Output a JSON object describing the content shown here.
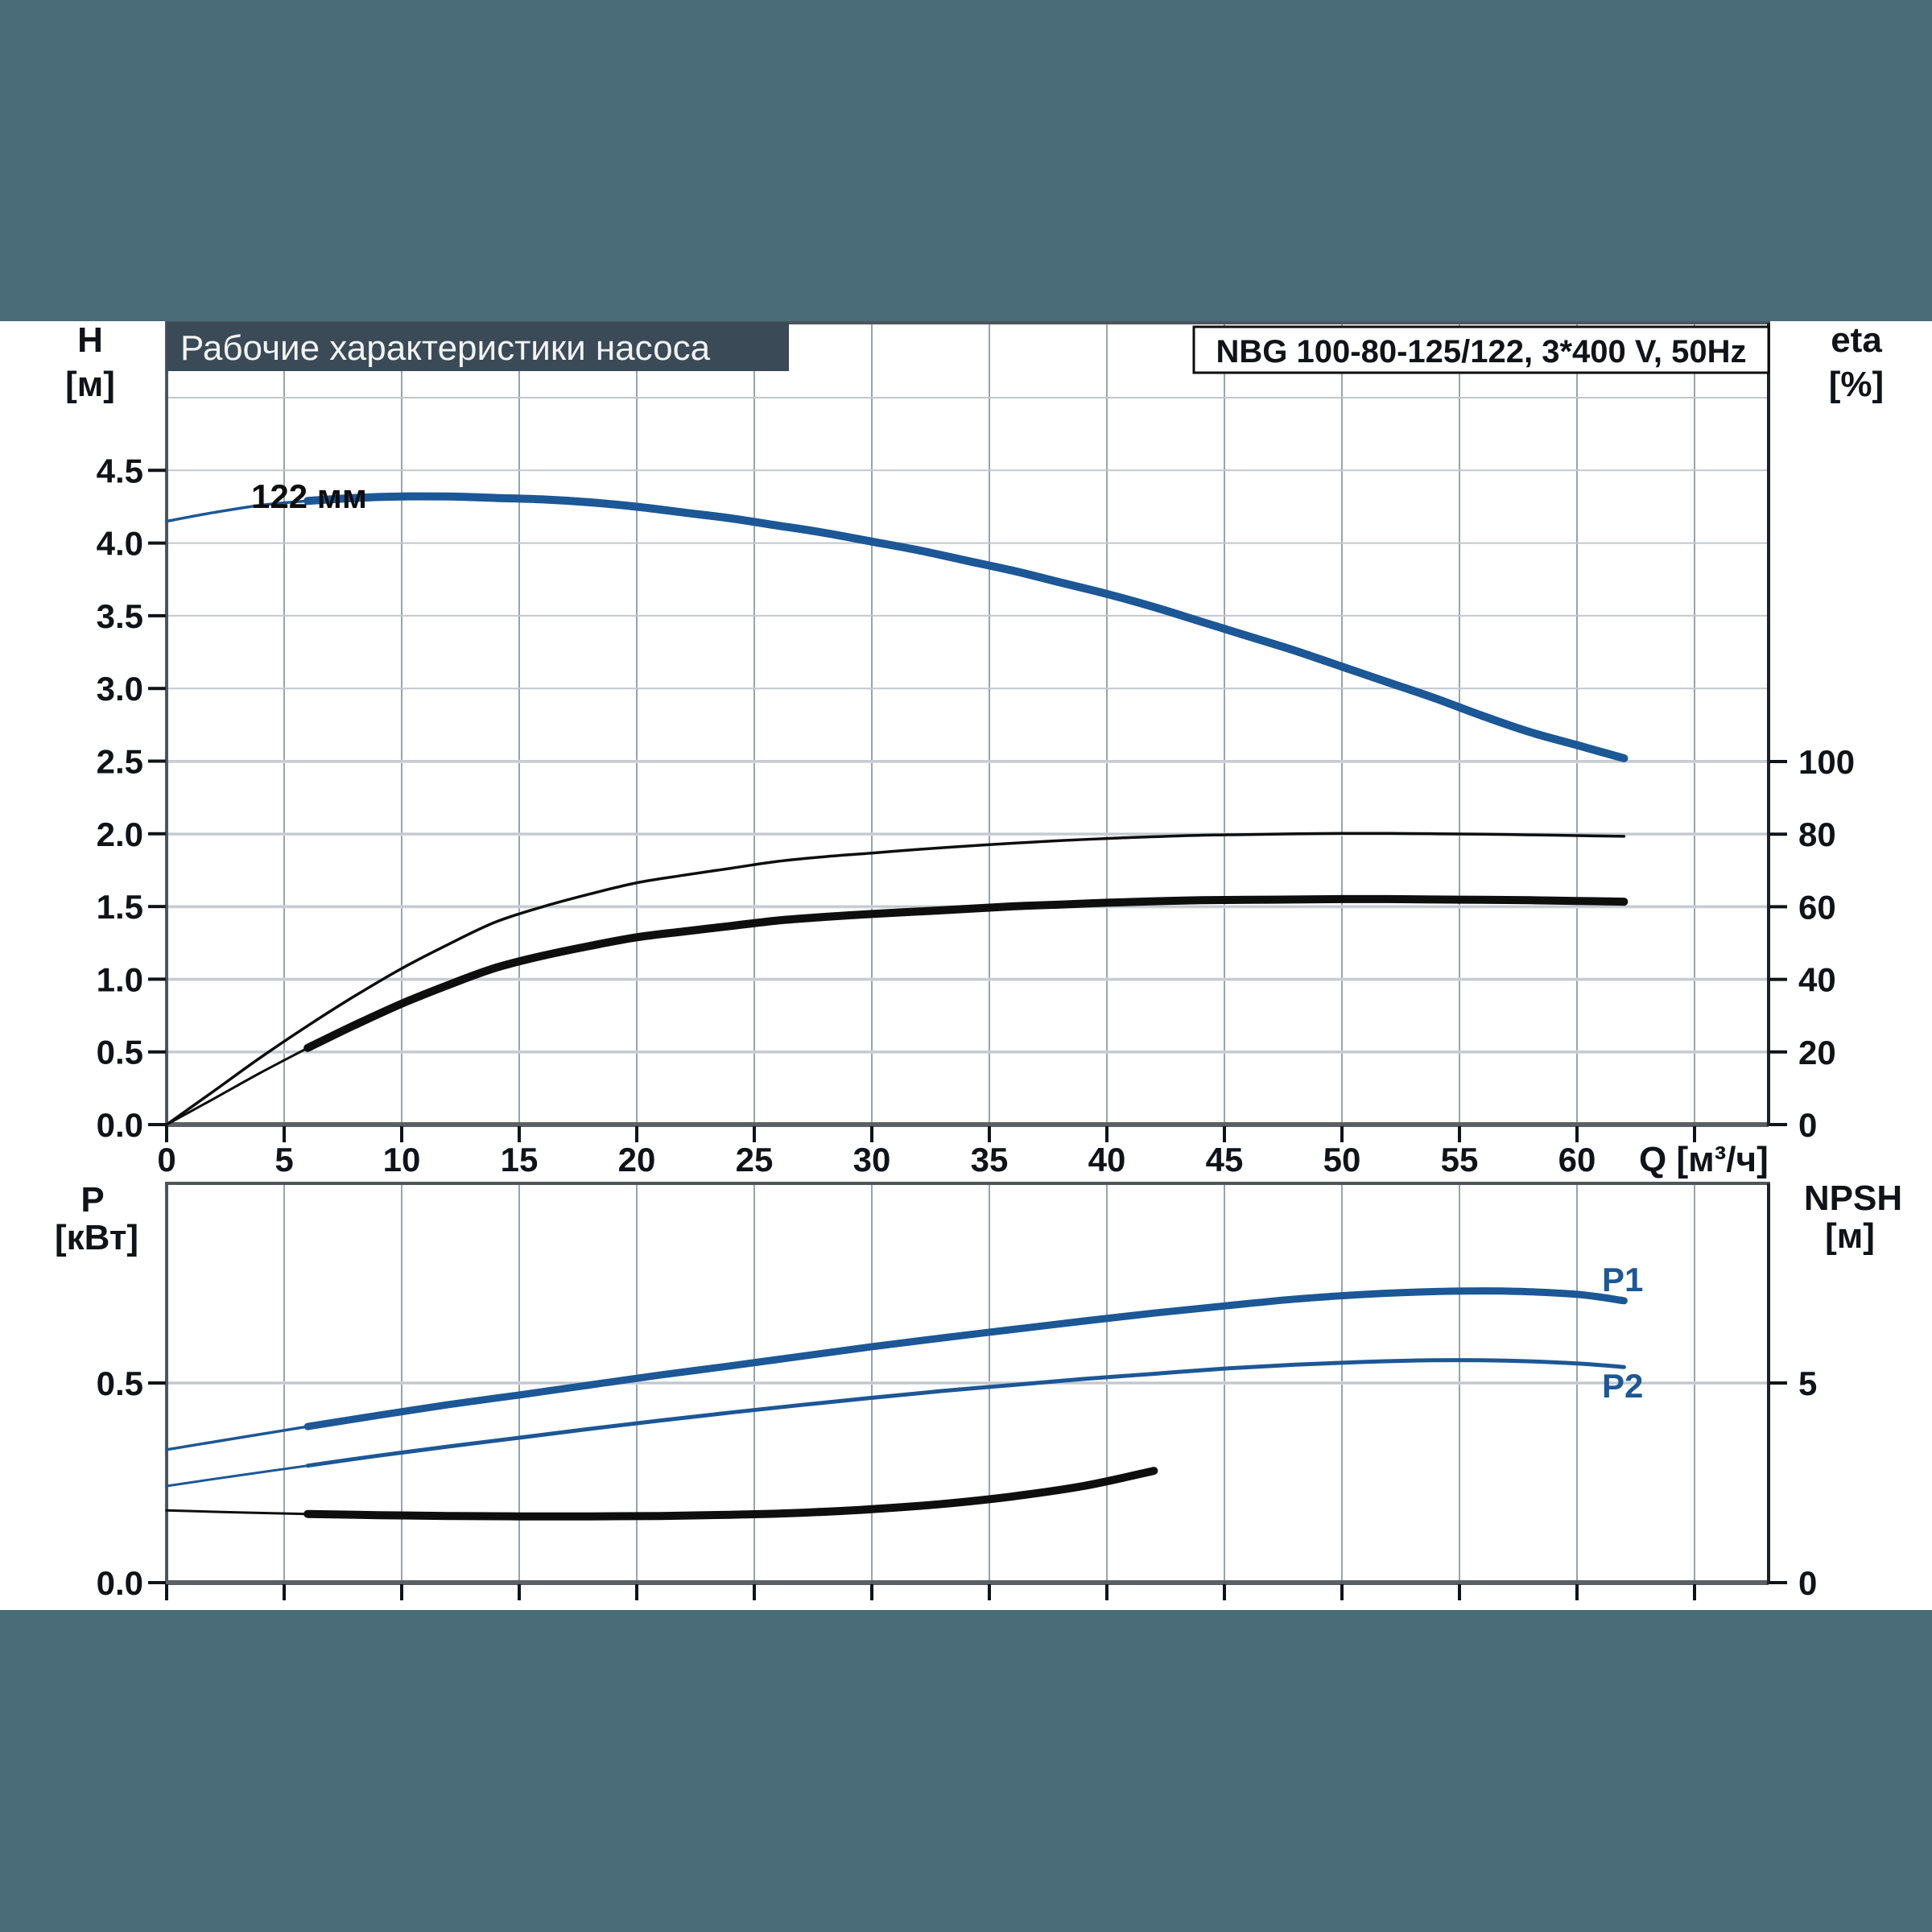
{
  "page": {
    "background": "#4A6B78",
    "panel": "#FFFFFF"
  },
  "title": {
    "text": "Рабочие характеристики насоса",
    "bg": "#3B4A57",
    "fg": "#F2F3F1"
  },
  "header": {
    "text": "NBG 100-80-125/122, 3*400 V, 50Hz"
  },
  "colors": {
    "accent_blue": "#1C5796",
    "curve_black": "#0E0E0E",
    "grid_light": "#D5D9DD",
    "grid_mid": "#C2C7CE",
    "grid_vert": "#9AA3AC",
    "frame": "#4E555C"
  },
  "chart_data": [
    {
      "id": "pump-performance",
      "type": "line",
      "title": "Рабочие характеристики насоса",
      "x_axis": {
        "label": "Q [м³/ч]",
        "min": 0,
        "max": 68.1,
        "ticks": [
          {
            "v": 0,
            "t": "0"
          },
          {
            "v": 5,
            "t": "5"
          },
          {
            "v": 10,
            "t": "10"
          },
          {
            "v": 15,
            "t": "15"
          },
          {
            "v": 20,
            "t": "20"
          },
          {
            "v": 25,
            "t": "25"
          },
          {
            "v": 30,
            "t": "30"
          },
          {
            "v": 35,
            "t": "35"
          },
          {
            "v": 40,
            "t": "40"
          },
          {
            "v": 45,
            "t": "45"
          },
          {
            "v": 50,
            "t": "50"
          },
          {
            "v": 55,
            "t": "55"
          },
          {
            "v": 60,
            "t": "60"
          }
        ],
        "tick_marks": [
          0,
          5,
          10,
          15,
          20,
          25,
          30,
          35,
          40,
          45,
          50,
          55,
          60,
          65
        ]
      },
      "y_left": {
        "name": "H",
        "unit": "[м]",
        "min": 0,
        "max": 5.51,
        "ticks": [
          {
            "v": 0,
            "t": "0.0"
          },
          {
            "v": 0.5,
            "t": "0.5"
          },
          {
            "v": 1,
            "t": "1.0"
          },
          {
            "v": 1.5,
            "t": "1.5"
          },
          {
            "v": 2,
            "t": "2.0"
          },
          {
            "v": 2.5,
            "t": "2.5"
          },
          {
            "v": 3,
            "t": "3.0"
          },
          {
            "v": 3.5,
            "t": "3.5"
          },
          {
            "v": 4,
            "t": "4.0"
          },
          {
            "v": 4.5,
            "t": "4.5"
          }
        ],
        "grid": [
          0.5,
          1,
          1.5,
          2,
          2.5,
          3,
          3.5,
          4,
          4.5,
          5
        ]
      },
      "y_right": {
        "name": "eta",
        "unit": "[%]",
        "min": 0,
        "max": 221,
        "ticks": [
          {
            "v": 0,
            "t": "0"
          },
          {
            "v": 20,
            "t": "20"
          },
          {
            "v": 40,
            "t": "40"
          },
          {
            "v": 60,
            "t": "60"
          },
          {
            "v": 80,
            "t": "80"
          },
          {
            "v": 100,
            "t": "100"
          }
        ],
        "grid": [
          20,
          40,
          60,
          80,
          100
        ]
      },
      "series": [
        {
          "name": "head-122mm",
          "label": "122 мм",
          "axis": "left",
          "color": "#1C5796",
          "width": 10,
          "width_thin": 3.5,
          "thin_until": 6,
          "points": [
            [
              0,
              4.15
            ],
            [
              2,
              4.21
            ],
            [
              4,
              4.26
            ],
            [
              6,
              4.29
            ],
            [
              8,
              4.31
            ],
            [
              10,
              4.32
            ],
            [
              12,
              4.32
            ],
            [
              14,
              4.31
            ],
            [
              16,
              4.3
            ],
            [
              18,
              4.28
            ],
            [
              20,
              4.25
            ],
            [
              22,
              4.21
            ],
            [
              24,
              4.17
            ],
            [
              26,
              4.12
            ],
            [
              28,
              4.07
            ],
            [
              30,
              4.01
            ],
            [
              32,
              3.95
            ],
            [
              34,
              3.88
            ],
            [
              36,
              3.81
            ],
            [
              38,
              3.73
            ],
            [
              40,
              3.65
            ],
            [
              42,
              3.56
            ],
            [
              44,
              3.46
            ],
            [
              46,
              3.36
            ],
            [
              48,
              3.26
            ],
            [
              50,
              3.15
            ],
            [
              52,
              3.04
            ],
            [
              54,
              2.93
            ],
            [
              56,
              2.81
            ],
            [
              58,
              2.7
            ],
            [
              60,
              2.61
            ],
            [
              62,
              2.52
            ]
          ]
        },
        {
          "name": "eta-pump",
          "label": "",
          "axis": "right",
          "color": "#0E0E0E",
          "width": 3.5,
          "width_thin": 3.5,
          "thin_until": 0,
          "points": [
            [
              0,
              0
            ],
            [
              2,
              9.2
            ],
            [
              4,
              18.5
            ],
            [
              6,
              27.2
            ],
            [
              8,
              35.4
            ],
            [
              10,
              43
            ],
            [
              12,
              49.7
            ],
            [
              14,
              55.8
            ],
            [
              16,
              60
            ],
            [
              18,
              63.5
            ],
            [
              20,
              66.6
            ],
            [
              22,
              68.7
            ],
            [
              24,
              70.6
            ],
            [
              26,
              72.5
            ],
            [
              28,
              73.8
            ],
            [
              30,
              74.8
            ],
            [
              32,
              75.8
            ],
            [
              34,
              76.7
            ],
            [
              36,
              77.5
            ],
            [
              38,
              78.2
            ],
            [
              40,
              78.8
            ],
            [
              42,
              79.3
            ],
            [
              44,
              79.7
            ],
            [
              46,
              79.9
            ],
            [
              48,
              80.1
            ],
            [
              50,
              80.2
            ],
            [
              52,
              80.2
            ],
            [
              54,
              80.1
            ],
            [
              56,
              80
            ],
            [
              58,
              79.8
            ],
            [
              60,
              79.6
            ],
            [
              62,
              79.4
            ]
          ]
        },
        {
          "name": "eta-pump-motor",
          "label": "",
          "axis": "right",
          "color": "#0E0E0E",
          "width": 10,
          "width_thin": 3,
          "thin_until": 6,
          "points": [
            [
              0,
              0
            ],
            [
              2,
              7.1
            ],
            [
              4,
              14.3
            ],
            [
              6,
              21.1
            ],
            [
              8,
              27.4
            ],
            [
              10,
              33.3
            ],
            [
              12,
              38.5
            ],
            [
              14,
              43.2
            ],
            [
              16,
              46.5
            ],
            [
              18,
              49.2
            ],
            [
              20,
              51.6
            ],
            [
              22,
              53.2
            ],
            [
              24,
              54.7
            ],
            [
              26,
              56.2
            ],
            [
              28,
              57.2
            ],
            [
              30,
              58
            ],
            [
              32,
              58.7
            ],
            [
              34,
              59.4
            ],
            [
              36,
              60.1
            ],
            [
              38,
              60.6
            ],
            [
              40,
              61.1
            ],
            [
              42,
              61.5
            ],
            [
              44,
              61.8
            ],
            [
              46,
              61.9
            ],
            [
              48,
              62
            ],
            [
              50,
              62.1
            ],
            [
              52,
              62.1
            ],
            [
              54,
              62
            ],
            [
              56,
              61.9
            ],
            [
              58,
              61.8
            ],
            [
              60,
              61.6
            ],
            [
              62,
              61.4
            ]
          ]
        }
      ]
    },
    {
      "id": "power-npsh",
      "type": "line",
      "title": "",
      "x_axis": {
        "label": "",
        "min": 0,
        "max": 68.1,
        "ticks": [],
        "tick_marks": [
          0,
          5,
          10,
          15,
          20,
          25,
          30,
          35,
          40,
          45,
          50,
          55,
          60,
          65
        ]
      },
      "y_left": {
        "name": "P",
        "unit": "[кВт]",
        "min": 0,
        "max": 1.0,
        "ticks": [
          {
            "v": 0,
            "t": "0.0"
          },
          {
            "v": 0.5,
            "t": "0.5"
          }
        ],
        "grid": [
          0.5
        ]
      },
      "y_right": {
        "name": "NPSH",
        "unit": "[м]",
        "min": 0,
        "max": 10,
        "ticks": [
          {
            "v": 0,
            "t": "0"
          },
          {
            "v": 5,
            "t": "5"
          }
        ],
        "grid": [
          5
        ]
      },
      "series": [
        {
          "name": "P1",
          "label": "P1",
          "axis": "left",
          "color": "#1C5796",
          "width": 9,
          "width_thin": 3.5,
          "thin_until": 6,
          "points": [
            [
              0,
              0.333
            ],
            [
              3,
              0.362
            ],
            [
              6,
              0.391
            ],
            [
              9,
              0.419
            ],
            [
              12,
              0.446
            ],
            [
              15,
              0.47
            ],
            [
              18,
              0.495
            ],
            [
              21,
              0.52
            ],
            [
              24,
              0.543
            ],
            [
              27,
              0.567
            ],
            [
              30,
              0.591
            ],
            [
              33,
              0.613
            ],
            [
              36,
              0.634
            ],
            [
              39,
              0.655
            ],
            [
              42,
              0.675
            ],
            [
              45,
              0.693
            ],
            [
              48,
              0.71
            ],
            [
              51,
              0.722
            ],
            [
              54,
              0.729
            ],
            [
              57,
              0.73
            ],
            [
              60,
              0.722
            ],
            [
              62,
              0.706
            ]
          ]
        },
        {
          "name": "P2",
          "label": "P2",
          "axis": "left",
          "color": "#1C5796",
          "width": 5,
          "width_thin": 3,
          "thin_until": 6,
          "points": [
            [
              0,
              0.242
            ],
            [
              3,
              0.268
            ],
            [
              6,
              0.293
            ],
            [
              9,
              0.318
            ],
            [
              12,
              0.341
            ],
            [
              15,
              0.363
            ],
            [
              18,
              0.385
            ],
            [
              21,
              0.406
            ],
            [
              24,
              0.426
            ],
            [
              27,
              0.445
            ],
            [
              30,
              0.463
            ],
            [
              33,
              0.48
            ],
            [
              36,
              0.495
            ],
            [
              39,
              0.51
            ],
            [
              42,
              0.523
            ],
            [
              45,
              0.536
            ],
            [
              48,
              0.546
            ],
            [
              51,
              0.553
            ],
            [
              54,
              0.557
            ],
            [
              57,
              0.556
            ],
            [
              60,
              0.549
            ],
            [
              62,
              0.54
            ]
          ]
        },
        {
          "name": "NPSH",
          "label": "",
          "axis": "right",
          "color": "#0E0E0E",
          "width": 10,
          "width_thin": 3,
          "thin_until": 6,
          "points": [
            [
              0,
              1.81
            ],
            [
              3,
              1.76
            ],
            [
              6,
              1.72
            ],
            [
              9,
              1.69
            ],
            [
              12,
              1.67
            ],
            [
              15,
              1.66
            ],
            [
              18,
              1.66
            ],
            [
              21,
              1.67
            ],
            [
              24,
              1.7
            ],
            [
              27,
              1.75
            ],
            [
              30,
              1.84
            ],
            [
              33,
              1.97
            ],
            [
              36,
              2.16
            ],
            [
              39,
              2.42
            ],
            [
              42,
              2.8
            ]
          ]
        }
      ]
    }
  ]
}
